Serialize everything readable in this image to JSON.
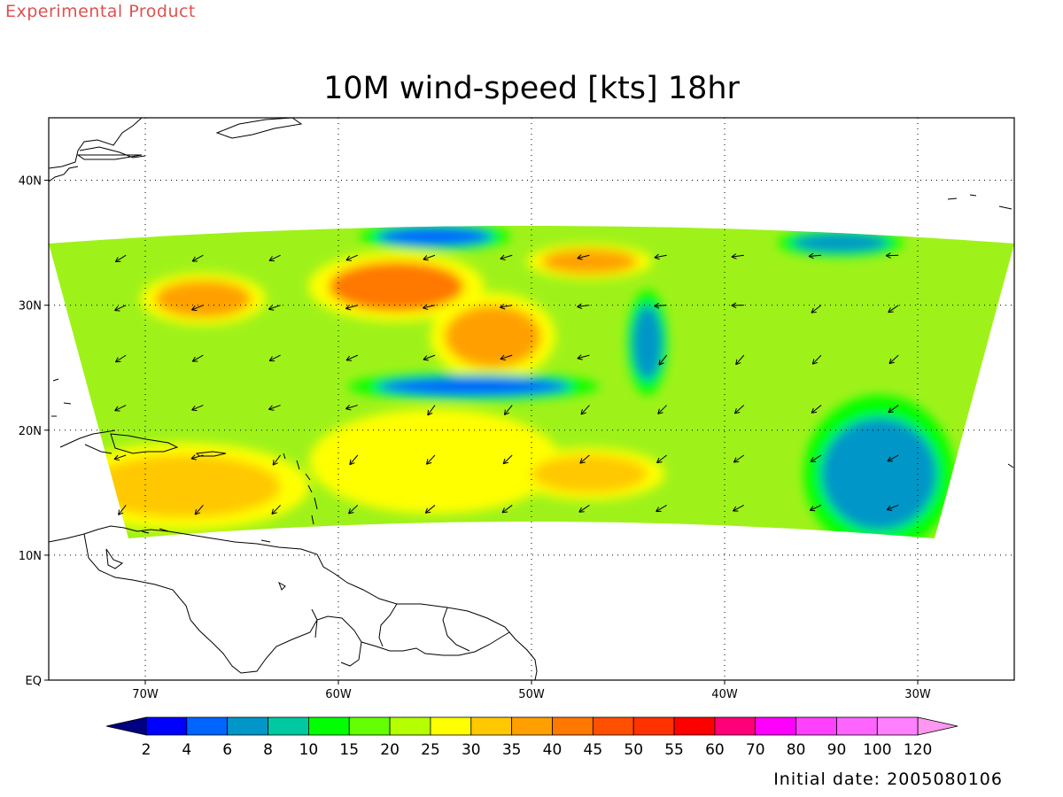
{
  "header": {
    "stamp": "Experimental Product",
    "title": "10M wind-speed [kts] 18hr"
  },
  "footer": {
    "initial_date": "Initial date: 2005080106"
  },
  "map": {
    "lon_range": [
      -75,
      -25
    ],
    "lat_range": [
      0,
      45
    ],
    "lat_labels": [
      {
        "lat": 0,
        "text": "EQ"
      },
      {
        "lat": 10,
        "text": "10N"
      },
      {
        "lat": 20,
        "text": "20N"
      },
      {
        "lat": 30,
        "text": "30N"
      },
      {
        "lat": 40,
        "text": "40N"
      }
    ],
    "lon_labels": [
      {
        "lon": -70,
        "text": "70W"
      },
      {
        "lon": -60,
        "text": "60W"
      },
      {
        "lon": -50,
        "text": "50W"
      },
      {
        "lon": -40,
        "text": "40W"
      },
      {
        "lon": -30,
        "text": "30W"
      }
    ],
    "gridlines": "dotted",
    "background_field_color": "#9ef21a"
  },
  "field_features": [
    {
      "name": "high-wind-subtropical-north",
      "center": [
        -57,
        31.5
      ],
      "radius_deg": [
        3.5,
        2
      ],
      "level": 40
    },
    {
      "name": "high-wind-ne-trades",
      "center": [
        -52,
        27.5
      ],
      "radius_deg": [
        2.5,
        2.5
      ],
      "level": 35
    },
    {
      "name": "high-wind-central",
      "center": [
        -47,
        33.5
      ],
      "radius_deg": [
        2.5,
        1
      ],
      "level": 35
    },
    {
      "name": "high-wind-west",
      "center": [
        -67,
        30.5
      ],
      "radius_deg": [
        2.5,
        1.5
      ],
      "level": 35
    },
    {
      "name": "high-wind-caribbean",
      "center": [
        -68,
        15.5
      ],
      "radius_deg": [
        5,
        2.5
      ],
      "level": 30
    },
    {
      "name": "high-wind-south-central",
      "center": [
        -55,
        17.5
      ],
      "radius_deg": [
        5,
        3
      ],
      "level": 25
    },
    {
      "name": "high-wind-south-east",
      "center": [
        -47,
        16.5
      ],
      "radius_deg": [
        3,
        1.5
      ],
      "level": 30
    },
    {
      "name": "low-wind-trough",
      "center": [
        -53,
        23.5
      ],
      "radius_deg": [
        5,
        0.8
      ],
      "level": 4
    },
    {
      "name": "low-wind-east-region",
      "center": [
        -32,
        16.5
      ],
      "radius_deg": [
        3,
        4.5
      ],
      "level": 6
    },
    {
      "name": "low-wind-north-west",
      "center": [
        -55,
        35.5
      ],
      "radius_deg": [
        3,
        0.8
      ],
      "level": 4
    },
    {
      "name": "low-wind-north-east",
      "center": [
        -34,
        35
      ],
      "radius_deg": [
        2.5,
        0.8
      ],
      "level": 6
    },
    {
      "name": "low-wind-central-column",
      "center": [
        -44,
        27
      ],
      "radius_deg": [
        0.8,
        3
      ],
      "level": 6
    }
  ],
  "wind_arrows": {
    "grid_spacing_deg": 4,
    "direction": "northeast-trades"
  },
  "colorbar": {
    "labels": [
      "2",
      "4",
      "6",
      "8",
      "10",
      "15",
      "20",
      "25",
      "30",
      "35",
      "40",
      "45",
      "50",
      "55",
      "60",
      "70",
      "80",
      "90",
      "100",
      "120"
    ],
    "colors": [
      "#000080",
      "#0000ff",
      "#0064ff",
      "#0096c8",
      "#00c8a0",
      "#00ff00",
      "#64ff00",
      "#b4ff00",
      "#ffff00",
      "#ffc800",
      "#ffa000",
      "#ff7800",
      "#ff5000",
      "#ff3200",
      "#ff0000",
      "#ff0078",
      "#ff00ff",
      "#ff40ff",
      "#ff64ff",
      "#ff80ff",
      "#ff96f0"
    ]
  }
}
